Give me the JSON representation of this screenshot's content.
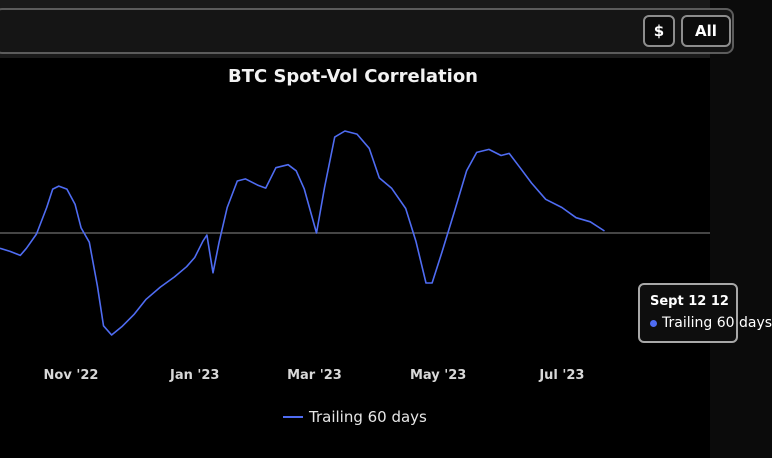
{
  "toolbar": {
    "currency_label": "$",
    "range_label": "All"
  },
  "tooltip": {
    "date": "Sept 12 12",
    "series": "Trailing 60 days"
  },
  "colors": {
    "line": "#4f6cf2",
    "zero_line": "#8a8a8a",
    "background": "#000000"
  },
  "chart_data": {
    "type": "line",
    "title": "BTC Spot-Vol Correlation",
    "xlabel": "",
    "ylabel": "",
    "y_axis_labels_visible": false,
    "ylim": [
      -1.0,
      1.0
    ],
    "reference_line": 0,
    "grid": false,
    "legend_position": "bottom",
    "xlim": [
      "2022-09-27",
      "2023-09-12"
    ],
    "x_ticks": [
      {
        "date": "2022-11-01",
        "label": "Nov '22"
      },
      {
        "date": "2023-01-01",
        "label": "Jan '23"
      },
      {
        "date": "2023-03-01",
        "label": "Mar '23"
      },
      {
        "date": "2023-05-01",
        "label": "May '23"
      },
      {
        "date": "2023-07-01",
        "label": "Jul '23"
      }
    ],
    "series": [
      {
        "name": "Trailing 60 days",
        "points": [
          [
            "2022-09-27",
            -0.15
          ],
          [
            "2022-10-02",
            -0.18
          ],
          [
            "2022-10-07",
            -0.22
          ],
          [
            "2022-10-10",
            -0.15
          ],
          [
            "2022-10-15",
            -0.01
          ],
          [
            "2022-10-20",
            0.25
          ],
          [
            "2022-10-23",
            0.43
          ],
          [
            "2022-10-26",
            0.46
          ],
          [
            "2022-10-30",
            0.43
          ],
          [
            "2022-11-03",
            0.28
          ],
          [
            "2022-11-06",
            0.05
          ],
          [
            "2022-11-10",
            -0.09
          ],
          [
            "2022-11-14",
            -0.52
          ],
          [
            "2022-11-17",
            -0.91
          ],
          [
            "2022-11-21",
            -1.0
          ],
          [
            "2022-11-26",
            -0.92
          ],
          [
            "2022-12-02",
            -0.8
          ],
          [
            "2022-12-08",
            -0.65
          ],
          [
            "2022-12-15",
            -0.53
          ],
          [
            "2022-12-22",
            -0.43
          ],
          [
            "2022-12-28",
            -0.33
          ],
          [
            "2023-01-01",
            -0.24
          ],
          [
            "2023-01-05",
            -0.08
          ],
          [
            "2023-01-07",
            -0.02
          ],
          [
            "2023-01-10",
            -0.39
          ],
          [
            "2023-01-13",
            -0.09
          ],
          [
            "2023-01-17",
            0.25
          ],
          [
            "2023-01-22",
            0.51
          ],
          [
            "2023-01-26",
            0.53
          ],
          [
            "2023-02-01",
            0.47
          ],
          [
            "2023-02-05",
            0.44
          ],
          [
            "2023-02-10",
            0.64
          ],
          [
            "2023-02-16",
            0.67
          ],
          [
            "2023-02-20",
            0.61
          ],
          [
            "2023-02-24",
            0.43
          ],
          [
            "2023-03-02",
            0.0
          ],
          [
            "2023-03-06",
            0.45
          ],
          [
            "2023-03-11",
            0.94
          ],
          [
            "2023-03-16",
            1.0
          ],
          [
            "2023-03-22",
            0.97
          ],
          [
            "2023-03-28",
            0.83
          ],
          [
            "2023-04-02",
            0.54
          ],
          [
            "2023-04-08",
            0.44
          ],
          [
            "2023-04-15",
            0.24
          ],
          [
            "2023-04-20",
            -0.08
          ],
          [
            "2023-04-25",
            -0.49
          ],
          [
            "2023-04-28",
            -0.49
          ],
          [
            "2023-05-03",
            -0.18
          ],
          [
            "2023-05-09",
            0.21
          ],
          [
            "2023-05-15",
            0.61
          ],
          [
            "2023-05-20",
            0.79
          ],
          [
            "2023-05-26",
            0.82
          ],
          [
            "2023-06-01",
            0.76
          ],
          [
            "2023-06-05",
            0.78
          ],
          [
            "2023-06-10",
            0.65
          ],
          [
            "2023-06-16",
            0.49
          ],
          [
            "2023-06-23",
            0.33
          ],
          [
            "2023-07-01",
            0.25
          ],
          [
            "2023-07-08",
            0.15
          ],
          [
            "2023-07-15",
            0.11
          ],
          [
            "2023-07-22",
            0.02
          ]
        ]
      }
    ]
  }
}
